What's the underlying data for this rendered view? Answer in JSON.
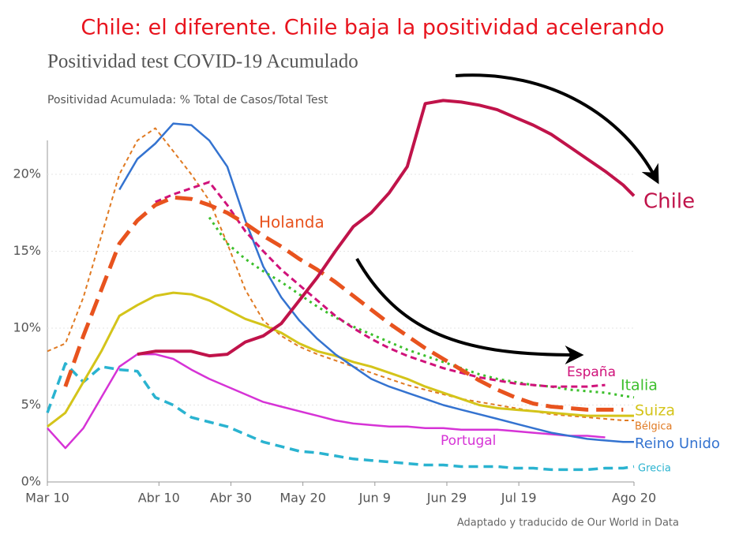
{
  "chart_data": {
    "type": "line",
    "headline": "Chile: el diferente. Chile baja la positividad acelerando",
    "title": "Positividad test COVID-19 Acumulado",
    "subtitle": "Positividad Acumulada: % Total de Casos/Total Test",
    "source": "Adaptado y traducido de Our World in Data",
    "x": [
      0,
      5,
      10,
      15,
      20,
      25,
      30,
      35,
      40,
      45,
      50,
      55,
      60,
      65,
      70,
      75,
      80,
      85,
      90,
      95,
      100,
      105,
      110,
      115,
      120,
      125,
      130,
      135,
      140,
      145,
      150,
      155,
      160,
      163
    ],
    "xlim": [
      0,
      163
    ],
    "xticks": [
      {
        "value": 0,
        "label": "Mar 10"
      },
      {
        "value": 31,
        "label": "Abr 10"
      },
      {
        "value": 51,
        "label": "Abr 30"
      },
      {
        "value": 71,
        "label": "May 20"
      },
      {
        "value": 91,
        "label": "Jun 9"
      },
      {
        "value": 111,
        "label": "Jun 29"
      },
      {
        "value": 131,
        "label": "Jul 19"
      },
      {
        "value": 163,
        "label": "Ago 20"
      }
    ],
    "ylim": [
      0,
      25
    ],
    "yticks": [
      {
        "value": 0,
        "label": "0%"
      },
      {
        "value": 5,
        "label": "5%"
      },
      {
        "value": 10,
        "label": "10%"
      },
      {
        "value": 15,
        "label": "15%"
      },
      {
        "value": 20,
        "label": "20%"
      }
    ],
    "grid": true,
    "series": [
      {
        "name": "Bélgica",
        "color": "#e07a22",
        "line_style": "dashed",
        "values": [
          8.5,
          9.0,
          12.0,
          16.0,
          20.0,
          22.2,
          23.0,
          21.5,
          20.0,
          18.3,
          15.5,
          12.5,
          10.5,
          9.5,
          8.8,
          8.3,
          7.9,
          7.5,
          7.1,
          6.7,
          6.3,
          6.0,
          5.7,
          5.4,
          5.2,
          5.0,
          4.8,
          4.6,
          4.4,
          4.3,
          4.2,
          4.1,
          4.0,
          4.0
        ]
      },
      {
        "name": "Grecia",
        "color": "#2ab3d0",
        "line_style": "dashed",
        "values": [
          4.5,
          7.7,
          6.5,
          7.5,
          7.3,
          7.2,
          5.5,
          5.0,
          4.2,
          3.9,
          3.6,
          3.1,
          2.6,
          2.3,
          2.0,
          1.9,
          1.7,
          1.5,
          1.4,
          1.3,
          1.2,
          1.1,
          1.1,
          1.0,
          1.0,
          1.0,
          0.9,
          0.9,
          0.8,
          0.8,
          0.8,
          0.9,
          0.9,
          1.0
        ]
      },
      {
        "name": "Portugal",
        "color": "#d633d6",
        "line_style": "solid",
        "values": [
          3.5,
          2.2,
          3.5,
          5.5,
          7.5,
          8.3,
          8.3,
          8.0,
          7.3,
          6.7,
          6.2,
          5.7,
          5.2,
          4.9,
          4.6,
          4.3,
          4.0,
          3.8,
          3.7,
          3.6,
          3.6,
          3.5,
          3.5,
          3.4,
          3.4,
          3.4,
          3.3,
          3.2,
          3.1,
          3.0,
          3.0,
          2.9,
          null,
          null
        ]
      },
      {
        "name": "Suiza",
        "color": "#d4c41a",
        "line_style": "solid",
        "values": [
          3.6,
          4.5,
          6.5,
          8.5,
          10.8,
          11.5,
          12.1,
          12.3,
          12.2,
          11.8,
          11.2,
          10.6,
          10.2,
          9.7,
          9.0,
          8.5,
          8.2,
          7.8,
          7.5,
          7.1,
          6.7,
          6.2,
          5.8,
          5.4,
          5.0,
          4.8,
          4.7,
          4.6,
          4.5,
          4.4,
          4.3,
          4.3,
          4.3,
          4.3
        ]
      },
      {
        "name": "Reino Unido",
        "color": "#3473d0",
        "line_style": "solid",
        "values": [
          null,
          null,
          null,
          null,
          19.0,
          21.0,
          22.0,
          23.3,
          23.2,
          22.2,
          20.5,
          17.0,
          14.0,
          12.0,
          10.5,
          9.3,
          8.3,
          7.5,
          6.7,
          6.2,
          5.8,
          5.4,
          5.0,
          4.7,
          4.4,
          4.1,
          3.8,
          3.5,
          3.2,
          3.0,
          2.8,
          2.7,
          2.6,
          2.6
        ]
      },
      {
        "name": "Italia",
        "color": "#3cbf2c",
        "line_style": "dotted",
        "values": [
          null,
          null,
          null,
          null,
          null,
          null,
          null,
          null,
          null,
          17.2,
          15.5,
          14.5,
          13.7,
          13.0,
          12.2,
          11.4,
          10.7,
          10.1,
          9.6,
          9.1,
          8.6,
          8.2,
          7.8,
          7.4,
          7.0,
          6.7,
          6.5,
          6.3,
          6.2,
          6.0,
          5.9,
          5.8,
          5.6,
          5.5
        ]
      },
      {
        "name": "España",
        "color": "#d0127a",
        "line_style": "dashed",
        "values": [
          null,
          null,
          null,
          null,
          null,
          null,
          18.2,
          18.7,
          19.1,
          19.5,
          18.0,
          16.3,
          15.0,
          13.8,
          12.8,
          11.8,
          10.8,
          10.0,
          9.3,
          8.7,
          8.2,
          7.8,
          7.4,
          7.1,
          6.8,
          6.6,
          6.4,
          6.3,
          6.2,
          6.2,
          6.2,
          6.3,
          null,
          null
        ]
      },
      {
        "name": "Holanda",
        "color": "#e8531e",
        "line_style": "dashed",
        "values": [
          null,
          6.2,
          9.5,
          12.5,
          15.5,
          17.0,
          18.0,
          18.5,
          18.4,
          18.0,
          17.5,
          16.8,
          16.0,
          15.3,
          14.5,
          13.8,
          13.0,
          12.1,
          11.2,
          10.3,
          9.5,
          8.7,
          8.0,
          7.3,
          6.6,
          6.0,
          5.5,
          5.1,
          4.9,
          4.8,
          4.7,
          4.7,
          4.7,
          null
        ]
      },
      {
        "name": "Chile",
        "color": "#c0134a",
        "line_style": "solid",
        "values": [
          null,
          null,
          null,
          null,
          null,
          8.3,
          8.5,
          8.5,
          8.5,
          8.2,
          8.3,
          9.1,
          9.5,
          10.3,
          11.8,
          13.3,
          15.0,
          16.6,
          17.5,
          18.8,
          20.5,
          24.6,
          24.8,
          24.7,
          24.5,
          24.2,
          23.7,
          23.2,
          22.6,
          21.8,
          21.0,
          20.2,
          19.3,
          18.6
        ]
      }
    ]
  }
}
